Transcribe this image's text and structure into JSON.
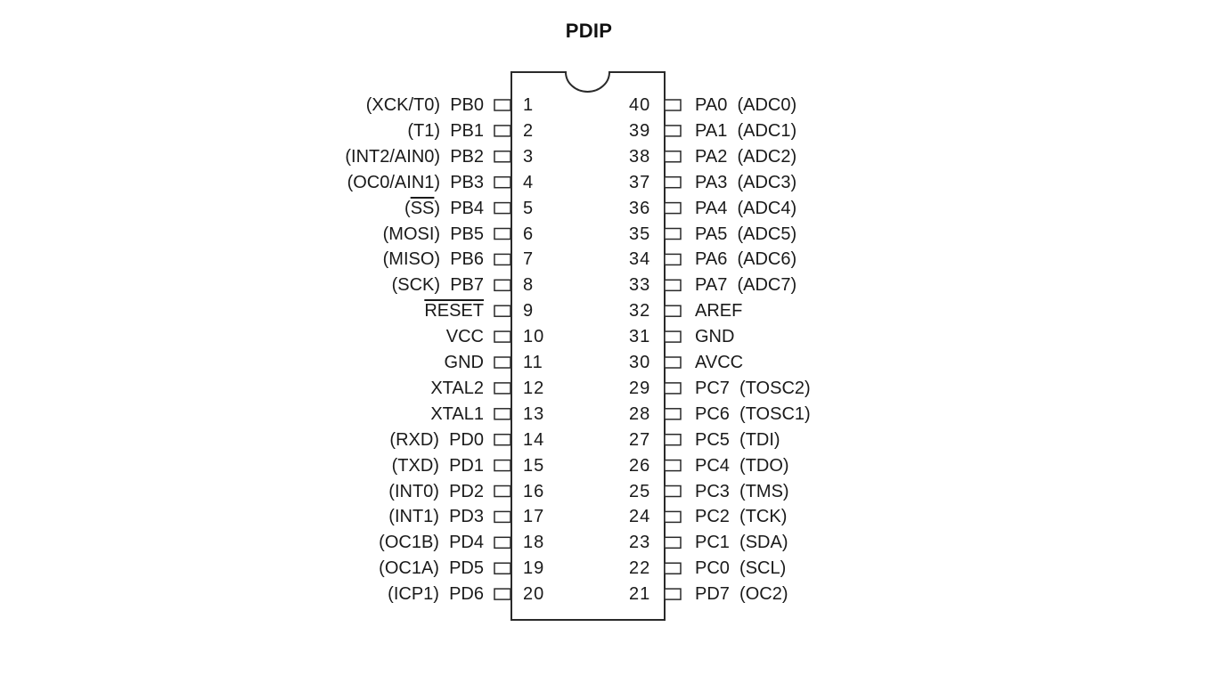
{
  "title": "PDIP",
  "package": {
    "left_pins": [
      {
        "number": "1",
        "label": "PB0",
        "alt": "(XCK/T0)"
      },
      {
        "number": "2",
        "label": "PB1",
        "alt": "(T1)"
      },
      {
        "number": "3",
        "label": "PB2",
        "alt": "(INT2/AIN0)"
      },
      {
        "number": "4",
        "label": "PB3",
        "alt": "(OC0/AIN1)"
      },
      {
        "number": "5",
        "label": "PB4",
        "alt": "(SS)",
        "alt_overline": "SS"
      },
      {
        "number": "6",
        "label": "PB5",
        "alt": "(MOSI)"
      },
      {
        "number": "7",
        "label": "PB6",
        "alt": "(MISO)"
      },
      {
        "number": "8",
        "label": "PB7",
        "alt": "(SCK)"
      },
      {
        "number": "9",
        "label": "RESET",
        "overline": true
      },
      {
        "number": "10",
        "label": "VCC"
      },
      {
        "number": "11",
        "label": "GND"
      },
      {
        "number": "12",
        "label": "XTAL2"
      },
      {
        "number": "13",
        "label": "XTAL1"
      },
      {
        "number": "14",
        "label": "PD0",
        "alt": "(RXD)"
      },
      {
        "number": "15",
        "label": "PD1",
        "alt": "(TXD)"
      },
      {
        "number": "16",
        "label": "PD2",
        "alt": "(INT0)"
      },
      {
        "number": "17",
        "label": "PD3",
        "alt": "(INT1)"
      },
      {
        "number": "18",
        "label": "PD4",
        "alt": "(OC1B)"
      },
      {
        "number": "19",
        "label": "PD5",
        "alt": "(OC1A)"
      },
      {
        "number": "20",
        "label": "PD6",
        "alt": "(ICP1)"
      }
    ],
    "right_pins": [
      {
        "number": "40",
        "label": "PA0",
        "alt": "(ADC0)"
      },
      {
        "number": "39",
        "label": "PA1",
        "alt": "(ADC1)"
      },
      {
        "number": "38",
        "label": "PA2",
        "alt": "(ADC2)"
      },
      {
        "number": "37",
        "label": "PA3",
        "alt": "(ADC3)"
      },
      {
        "number": "36",
        "label": "PA4",
        "alt": "(ADC4)"
      },
      {
        "number": "35",
        "label": "PA5",
        "alt": "(ADC5)"
      },
      {
        "number": "34",
        "label": "PA6",
        "alt": "(ADC6)"
      },
      {
        "number": "33",
        "label": "PA7",
        "alt": "(ADC7)"
      },
      {
        "number": "32",
        "label": "AREF"
      },
      {
        "number": "31",
        "label": "GND"
      },
      {
        "number": "30",
        "label": "AVCC"
      },
      {
        "number": "29",
        "label": "PC7",
        "alt": "(TOSC2)"
      },
      {
        "number": "28",
        "label": "PC6",
        "alt": "(TOSC1)"
      },
      {
        "number": "27",
        "label": "PC5",
        "alt": "(TDI)"
      },
      {
        "number": "26",
        "label": "PC4",
        "alt": "(TDO)"
      },
      {
        "number": "25",
        "label": "PC3",
        "alt": "(TMS)"
      },
      {
        "number": "24",
        "label": "PC2",
        "alt": "(TCK)"
      },
      {
        "number": "23",
        "label": "PC1",
        "alt": "(SDA)"
      },
      {
        "number": "22",
        "label": "PC0",
        "alt": "(SCL)"
      },
      {
        "number": "21",
        "label": "PD7",
        "alt": "(OC2)"
      }
    ]
  },
  "colors": {
    "stroke": "#2a2a2a",
    "text": "#1a1a1a",
    "background": "#ffffff"
  }
}
